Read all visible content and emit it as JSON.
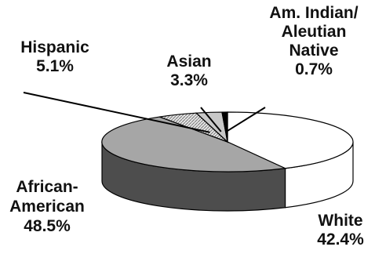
{
  "chart_data": {
    "type": "pie",
    "three_d": true,
    "slices": [
      {
        "category": [
          "White"
        ],
        "value": 42.4,
        "value_label": "42.4%",
        "color": "#ffffff",
        "side_color": "#ffffff"
      },
      {
        "category": [
          "African-",
          "American"
        ],
        "value": 48.5,
        "value_label": "48.5%",
        "color": "#a6a6a6",
        "side_color": "#4d4d4d"
      },
      {
        "category": [
          "Hispanic"
        ],
        "value": 5.1,
        "value_label": "5.1%",
        "color": "#e6e6e6",
        "side_color": "#bfbfbf",
        "pattern": "hatch"
      },
      {
        "category": [
          "Asian"
        ],
        "value": 3.3,
        "value_label": "3.3%",
        "color": "#c8c8c8",
        "side_color": "#9e9e9e"
      },
      {
        "category": [
          "Am. Indian/",
          "Aleutian",
          "Native"
        ],
        "value": 0.7,
        "value_label": "0.7%",
        "color": "#000000",
        "side_color": "#000000"
      }
    ],
    "legend": "none"
  }
}
